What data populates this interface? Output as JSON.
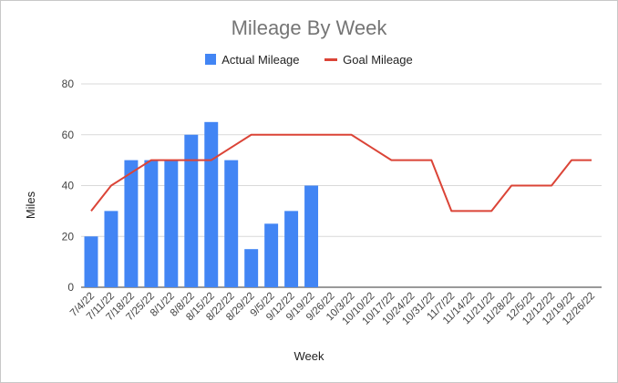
{
  "chart_data": {
    "type": "bar",
    "title": "Mileage By Week",
    "xlabel": "Week",
    "ylabel": "Miles",
    "ylim": [
      0,
      80
    ],
    "yticks": [
      0,
      20,
      40,
      60,
      80
    ],
    "grid": true,
    "legend_position": "top",
    "categories": [
      "7/4/22",
      "7/11/22",
      "7/18/22",
      "7/25/22",
      "8/1/22",
      "8/8/22",
      "8/15/22",
      "8/22/22",
      "8/29/22",
      "9/5/22",
      "9/12/22",
      "9/19/22",
      "9/26/22",
      "10/3/22",
      "10/10/22",
      "10/17/22",
      "10/24/22",
      "10/31/22",
      "11/7/22",
      "11/14/22",
      "11/21/22",
      "11/28/22",
      "12/5/22",
      "12/12/22",
      "12/19/22",
      "12/26/22"
    ],
    "series": [
      {
        "name": "Actual Mileage",
        "type": "bar",
        "color": "#4285f4",
        "values": [
          20,
          30,
          50,
          50,
          50,
          60,
          65,
          50,
          15,
          25,
          30,
          40,
          null,
          null,
          null,
          null,
          null,
          null,
          null,
          null,
          null,
          null,
          null,
          null,
          null,
          null
        ]
      },
      {
        "name": "Goal Mileage",
        "type": "line",
        "color": "#db4437",
        "values": [
          30,
          40,
          45,
          50,
          50,
          50,
          50,
          55,
          60,
          60,
          60,
          60,
          60,
          60,
          55,
          50,
          50,
          50,
          30,
          30,
          30,
          40,
          40,
          40,
          50,
          50
        ]
      }
    ]
  }
}
